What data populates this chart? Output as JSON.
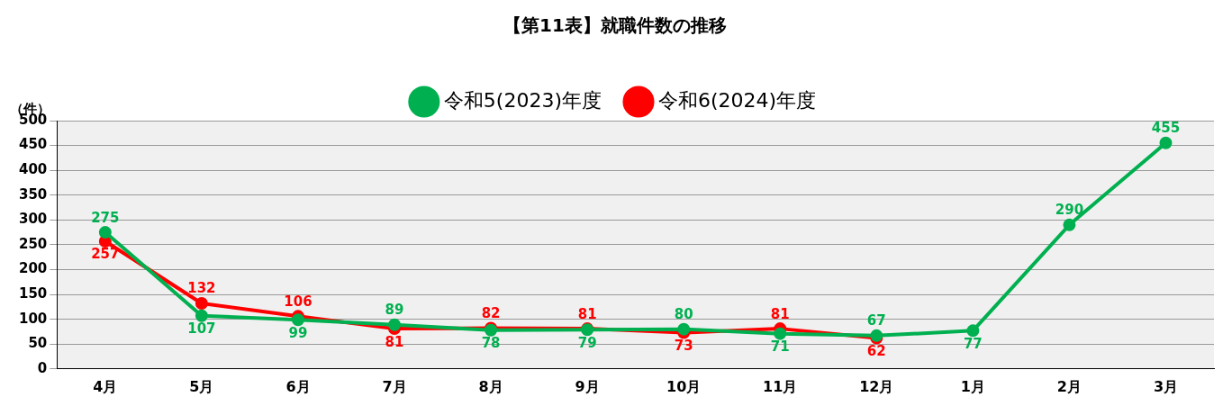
{
  "chart_data": {
    "type": "line",
    "title": "【第11表】就職件数の推移",
    "ylabel": "（件）",
    "categories": [
      "4月",
      "5月",
      "6月",
      "7月",
      "8月",
      "9月",
      "10月",
      "11月",
      "12月",
      "1月",
      "2月",
      "3月"
    ],
    "series": [
      {
        "name": "令和5(2023)年度",
        "color": "#00b050",
        "values": [
          275,
          107,
          99,
          89,
          78,
          79,
          80,
          71,
          67,
          77,
          290,
          455
        ]
      },
      {
        "name": "令和6(2024)年度",
        "color": "#ff0000",
        "values": [
          257,
          132,
          106,
          81,
          82,
          81,
          73,
          81,
          62,
          null,
          null,
          null
        ]
      }
    ],
    "ylim": [
      0,
      500
    ],
    "yticks": [
      0,
      50,
      100,
      150,
      200,
      250,
      300,
      350,
      400,
      450,
      500
    ],
    "grid": "y",
    "legend": "top",
    "marker": "circle",
    "data_labels": true
  }
}
